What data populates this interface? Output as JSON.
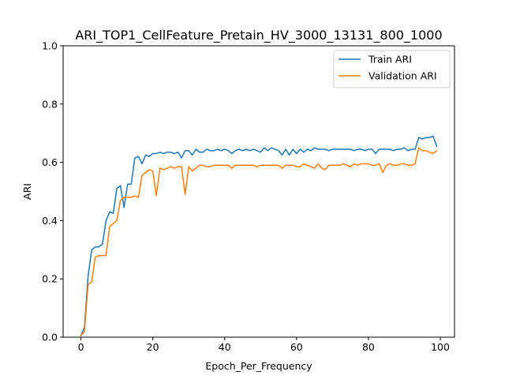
{
  "chart_data": {
    "type": "line",
    "title": "ARI_TOP1_CellFeature_Pretain_HV_3000_13131_800_1000",
    "xlabel": "Epoch_Per_Frequency",
    "ylabel": "ARI",
    "xlim": [
      -4.95,
      103.95
    ],
    "ylim": [
      0,
      1.0
    ],
    "xticks": [
      0,
      20,
      40,
      60,
      80,
      100
    ],
    "yticks": [
      0.0,
      0.2,
      0.4,
      0.6,
      0.8,
      1.0
    ],
    "xtick_labels": [
      "0",
      "20",
      "40",
      "60",
      "80",
      "100"
    ],
    "ytick_labels": [
      "0.0",
      "0.2",
      "0.4",
      "0.6",
      "0.8",
      "1.0"
    ],
    "grid": false,
    "legend_position": "top-right",
    "series": [
      {
        "name": "Train ARI",
        "color": "#1f77b4",
        "values": [
          0.005,
          0.035,
          0.21,
          0.3,
          0.31,
          0.31,
          0.32,
          0.4,
          0.43,
          0.425,
          0.51,
          0.52,
          0.445,
          0.525,
          0.525,
          0.615,
          0.62,
          0.595,
          0.625,
          0.62,
          0.63,
          0.63,
          0.635,
          0.63,
          0.635,
          0.635,
          0.63,
          0.635,
          0.615,
          0.64,
          0.64,
          0.625,
          0.645,
          0.635,
          0.635,
          0.645,
          0.64,
          0.64,
          0.645,
          0.64,
          0.645,
          0.64,
          0.63,
          0.64,
          0.645,
          0.64,
          0.645,
          0.64,
          0.645,
          0.64,
          0.635,
          0.65,
          0.64,
          0.65,
          0.645,
          0.64,
          0.625,
          0.645,
          0.625,
          0.645,
          0.63,
          0.645,
          0.635,
          0.645,
          0.64,
          0.65,
          0.645,
          0.645,
          0.645,
          0.64,
          0.645,
          0.645,
          0.645,
          0.645,
          0.645,
          0.645,
          0.64,
          0.645,
          0.645,
          0.64,
          0.645,
          0.645,
          0.63,
          0.645,
          0.645,
          0.645,
          0.645,
          0.64,
          0.645,
          0.645,
          0.65,
          0.64,
          0.645,
          0.645,
          0.685,
          0.68,
          0.685,
          0.685,
          0.69,
          0.655
        ]
      },
      {
        "name": "Validation ARI",
        "color": "#ff7f0e",
        "values": [
          0.005,
          0.02,
          0.18,
          0.19,
          0.275,
          0.28,
          0.28,
          0.28,
          0.38,
          0.39,
          0.4,
          0.47,
          0.48,
          0.48,
          0.48,
          0.485,
          0.48,
          0.555,
          0.565,
          0.575,
          0.57,
          0.485,
          0.58,
          0.575,
          0.58,
          0.585,
          0.58,
          0.585,
          0.585,
          0.49,
          0.585,
          0.57,
          0.58,
          0.59,
          0.59,
          0.585,
          0.585,
          0.59,
          0.59,
          0.59,
          0.59,
          0.59,
          0.58,
          0.59,
          0.59,
          0.59,
          0.59,
          0.59,
          0.59,
          0.585,
          0.59,
          0.59,
          0.59,
          0.59,
          0.59,
          0.59,
          0.58,
          0.59,
          0.59,
          0.59,
          0.585,
          0.585,
          0.595,
          0.59,
          0.585,
          0.58,
          0.595,
          0.58,
          0.575,
          0.59,
          0.59,
          0.59,
          0.59,
          0.595,
          0.59,
          0.585,
          0.595,
          0.59,
          0.595,
          0.595,
          0.595,
          0.59,
          0.59,
          0.595,
          0.565,
          0.59,
          0.595,
          0.59,
          0.59,
          0.595,
          0.595,
          0.59,
          0.59,
          0.595,
          0.65,
          0.64,
          0.64,
          0.635,
          0.63,
          0.64
        ]
      }
    ]
  }
}
